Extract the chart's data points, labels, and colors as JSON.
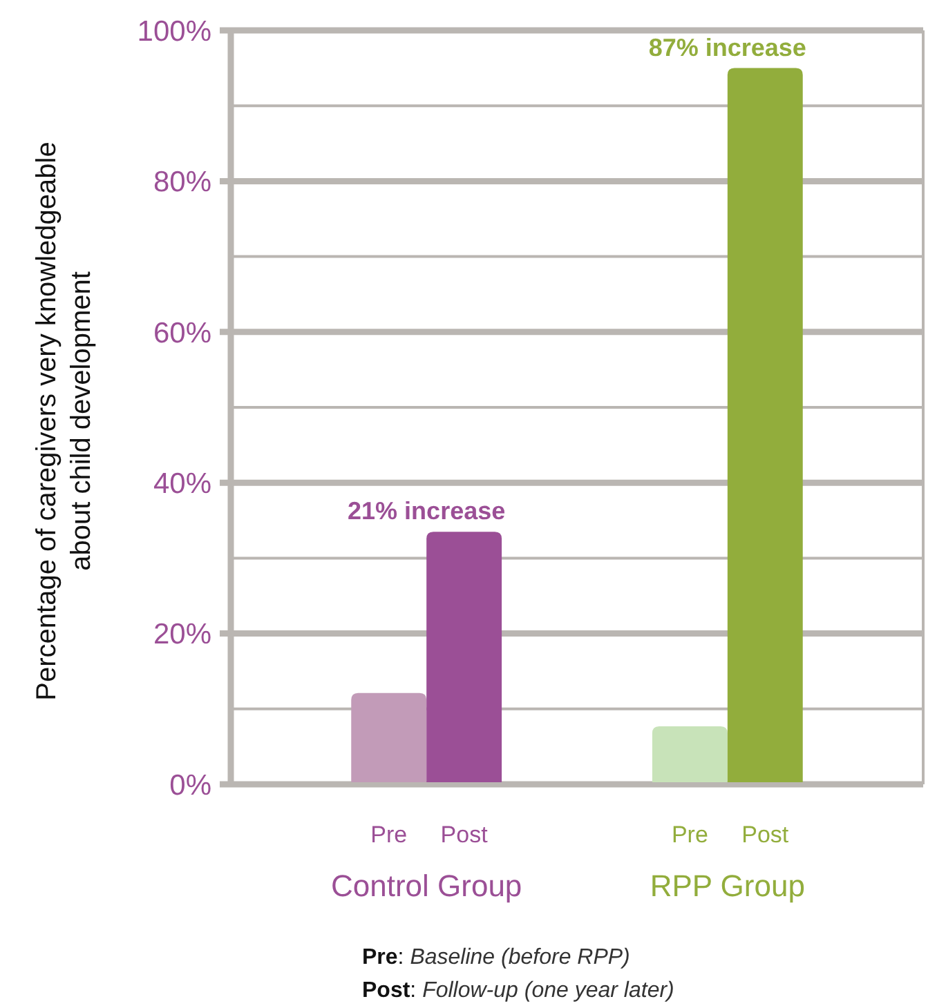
{
  "chart_data": {
    "type": "bar",
    "ylabel": "Percentage of caregivers very knowledgeable about child development",
    "categories": [
      "Control Group",
      "RPP Group"
    ],
    "series": [
      {
        "name": "Pre",
        "colors": [
          "#c29bb8",
          "#c8e3b9"
        ],
        "values": [
          12.1,
          7.7
        ]
      },
      {
        "name": "Post",
        "colors": [
          "#9b4f96",
          "#92ad3c"
        ],
        "values": [
          33.5,
          95
        ]
      }
    ],
    "ylim": [
      0,
      100
    ],
    "yticks": [
      {
        "value": 0,
        "label": "0%"
      },
      {
        "value": 10,
        "label": null
      },
      {
        "value": 20,
        "label": "20%"
      },
      {
        "value": 30,
        "label": null
      },
      {
        "value": 40,
        "label": "40%"
      },
      {
        "value": 50,
        "label": null
      },
      {
        "value": 60,
        "label": "60%"
      },
      {
        "value": 70,
        "label": null
      },
      {
        "value": 80,
        "label": "80%"
      },
      {
        "value": 90,
        "label": null
      },
      {
        "value": 100,
        "label": "100%"
      }
    ],
    "grid": "y",
    "annotations": [
      {
        "text": "21% increase",
        "x": "Control Group",
        "y": 33.5
      },
      {
        "text": "87% increase",
        "x": "RPP Group",
        "y": 95
      },
      "Pre: Baseline (before RPP)",
      "Post: Follow-up (one year later)"
    ]
  }
}
